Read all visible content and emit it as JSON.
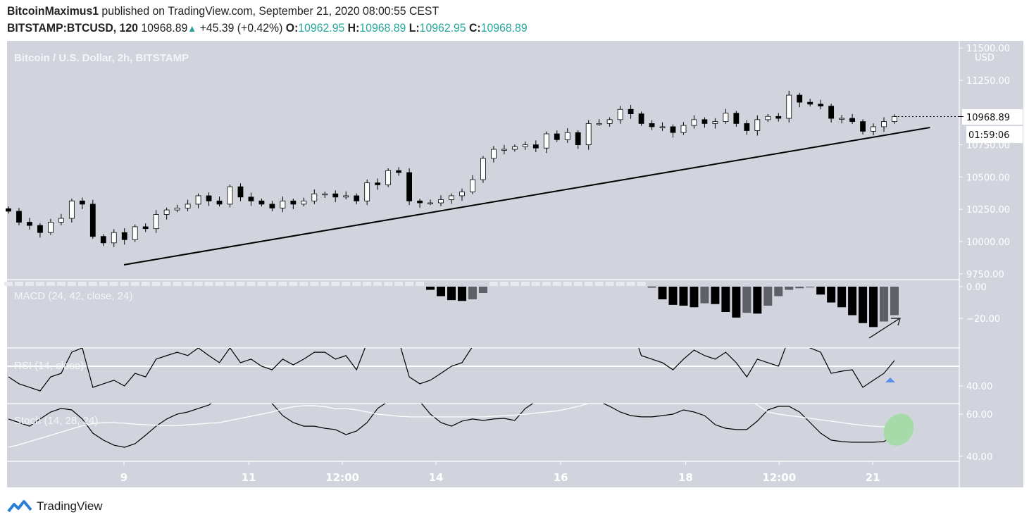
{
  "header": {
    "author": "BitcoinMaximus1",
    "published": "published on TradingView.com, September 21, 2020 08:00:55 CEST",
    "symbol": "BITSTAMP:BTCUSD, 120",
    "last": "10968.89",
    "change": "+45.39 (+0.42%)",
    "o_label": "O:",
    "o": "10962.95",
    "h_label": "H:",
    "h": "10968.89",
    "l_label": "L:",
    "l": "10962.95",
    "c_label": "C:",
    "c": "10968.89",
    "up_icon": "triangle-up-icon"
  },
  "footer": {
    "brand": "TradingView",
    "logo_icon": "tradingview-logo-icon"
  },
  "colors": {
    "background": "#d1d4dc",
    "accent": "#26a69a",
    "down": "#000000",
    "up": "#ffffff",
    "highlight": "#a6dba9",
    "marker": "#5b8ee6"
  },
  "chart_data": [
    {
      "type": "candlestick",
      "title": "Bitcoin / U.S. Dollar, 2h, BITSTAMP",
      "currency": "USD",
      "interval": "2h",
      "ylim": [
        9700,
        11550
      ],
      "yticks": [
        "11500.00",
        "11250.00",
        "10750.00",
        "10500.00",
        "10250.00",
        "10000.00",
        "9750.00"
      ],
      "xticks": [
        {
          "label": "9",
          "date": "2020-09-09T00:00"
        },
        {
          "label": "11",
          "date": "2020-09-11T00:00"
        },
        {
          "label": "12:00",
          "date": "2020-09-12T12:00"
        },
        {
          "label": "14",
          "date": "2020-09-14T00:00"
        },
        {
          "label": "16",
          "date": "2020-09-16T00:00"
        },
        {
          "label": "18",
          "date": "2020-09-18T00:00"
        },
        {
          "label": "12:00",
          "date": "2020-09-19T12:00"
        },
        {
          "label": "21",
          "date": "2020-09-21T00:00"
        }
      ],
      "closes": [
        10235,
        10150,
        10125,
        10070,
        10150,
        10180,
        10315,
        10290,
        10040,
        9990,
        10070,
        10015,
        10115,
        10100,
        10210,
        10245,
        10260,
        10290,
        10355,
        10315,
        10290,
        10425,
        10345,
        10315,
        10290,
        10260,
        10315,
        10290,
        10315,
        10370,
        10370,
        10345,
        10355,
        10315,
        10455,
        10440,
        10550,
        10535,
        10315,
        10300,
        10300,
        10325,
        10355,
        10385,
        10480,
        10645,
        10715,
        10715,
        10735,
        10750,
        10725,
        10835,
        10790,
        10845,
        10750,
        10915,
        10915,
        10945,
        11025,
        10990,
        10915,
        10890,
        10890,
        10845,
        10900,
        10945,
        10915,
        10930,
        10995,
        10915,
        10860,
        10945,
        10970,
        10955,
        11135,
        11080,
        11065,
        11050,
        10955,
        10955,
        10930,
        10855,
        10890,
        10930,
        10969
      ],
      "last_price_label": "10968.89",
      "countdown": "01:59:06",
      "last_price": 10968.89,
      "trendline": {
        "from": {
          "date": "2020-09-09T00:00",
          "price": 9820
        },
        "to": {
          "date": "2020-09-21T22:00",
          "price": 10884
        }
      }
    },
    {
      "type": "histogram",
      "title": "MACD (24, 42, close, 24)",
      "yticks": [
        "0.00",
        "-20.00"
      ],
      "values": [
        0,
        0,
        0,
        0,
        0,
        0,
        0,
        0,
        0,
        0,
        0,
        0,
        0,
        0,
        0,
        0,
        0,
        0,
        0,
        0,
        0,
        0,
        0,
        0,
        0,
        0,
        0,
        0,
        0,
        0,
        0,
        0,
        0,
        0,
        0,
        0,
        0,
        0,
        0,
        0,
        -2,
        -6,
        -8.5,
        -9,
        -8,
        -4,
        0,
        0,
        0,
        0,
        0,
        0,
        0,
        0,
        0,
        0,
        0,
        0,
        0,
        0,
        0,
        -0.5,
        -8,
        -11.5,
        -12,
        -13,
        -10.5,
        -11,
        -16,
        -19.5,
        -16.5,
        -17,
        -12,
        -6,
        -2,
        -1,
        -0.5,
        -5,
        -10,
        -13,
        -18,
        -23,
        -25.5,
        -22,
        -18
      ],
      "annotation": "arrow-up-right"
    },
    {
      "type": "line",
      "title": "RSI (14, close)",
      "yticks": [
        "40.00"
      ],
      "level": 50,
      "values": [
        44.6,
        41.1,
        39.3,
        37.5,
        44.6,
        46.4,
        57.1,
        59.3,
        39.3,
        41.1,
        42.9,
        40,
        46.4,
        44.6,
        53.6,
        55.4,
        57.1,
        55.4,
        59.3,
        55.4,
        51.8,
        59.3,
        51.8,
        53.6,
        50,
        48.2,
        53.6,
        50.7,
        53.6,
        57.1,
        57.1,
        53.6,
        55.4,
        48.2,
        62,
        64,
        66,
        63,
        44.6,
        41.1,
        42.9,
        46.4,
        50,
        51.8,
        60,
        66,
        70,
        72,
        70,
        68,
        71,
        73,
        69,
        72,
        70,
        74,
        72,
        73,
        75,
        71,
        55.4,
        53.6,
        51.8,
        48.2,
        53.6,
        58.2,
        55.4,
        53.6,
        57.1,
        51.8,
        44.6,
        53.6,
        51.8,
        50,
        64.3,
        62,
        59.3,
        57.1,
        46.4,
        47.5,
        48.2,
        39.3,
        42.9,
        46.4,
        52.9
      ],
      "annotation": "triangle-up"
    },
    {
      "type": "line",
      "title": "Stoch (14, 28, 24)",
      "yticks": [
        "60.00",
        "40.00"
      ],
      "series": [
        {
          "values": [
            57.7,
            56,
            54.3,
            57.7,
            61,
            62.7,
            62,
            57.7,
            51,
            47.7,
            45.3,
            44.3,
            46,
            50,
            54.3,
            57.7,
            60,
            61,
            62.7,
            64.3,
            67.7,
            68,
            68,
            68,
            68,
            65,
            59.3,
            56,
            54.3,
            54.3,
            53.3,
            52.7,
            50.3,
            52,
            56,
            62.7,
            66,
            67.7,
            67.7,
            66,
            60,
            56,
            54.3,
            56.7,
            57.7,
            57,
            57.7,
            58,
            57,
            62.7,
            66,
            68,
            68,
            68,
            68,
            68,
            66,
            63.7,
            61,
            59.3,
            58.7,
            58.7,
            59.3,
            60,
            62,
            61,
            59.3,
            55,
            53.3,
            52.7,
            52.7,
            56.7,
            62,
            63.7,
            63.7,
            61,
            56,
            51,
            47.7,
            47,
            46.7,
            46.7,
            46.7,
            47,
            50
          ]
        },
        {
          "values": [
            44.3,
            45.5,
            47,
            48.5,
            50,
            51.5,
            53,
            54.5,
            55.5,
            56,
            56,
            55.7,
            55.3,
            55,
            54.7,
            54.5,
            54.5,
            55,
            55.3,
            55.7,
            56,
            57,
            58,
            59,
            60,
            61,
            62.5,
            63.5,
            64,
            64,
            63.5,
            62.5,
            62.7,
            62,
            61,
            60,
            59.5,
            59,
            58.7,
            58.7,
            58.7,
            58.7,
            58.7,
            58.7,
            58.7,
            58.7,
            59,
            59.3,
            59.5,
            60,
            60.5,
            61,
            61.5,
            62.5,
            63.7,
            65,
            66,
            67,
            68,
            68,
            68,
            68,
            68,
            68,
            68,
            68,
            68,
            68,
            68,
            68,
            67,
            64.3,
            61,
            60,
            59.3,
            58.7,
            58,
            57.3,
            56.7,
            56,
            55.3,
            54.7,
            54.3,
            54,
            54
          ]
        }
      ],
      "annotation": "ellipse-highlight"
    }
  ]
}
